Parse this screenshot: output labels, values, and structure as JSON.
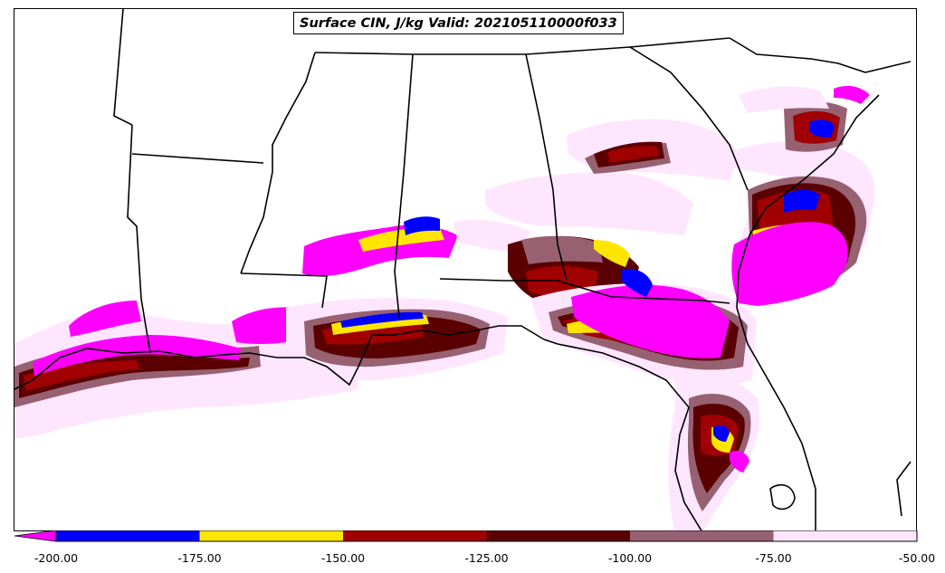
{
  "title": "Surface CIN, J/kg Valid: 202105110000f033",
  "colorbar": {
    "ticks": [
      "-200.00",
      "-175.00",
      "-150.00",
      "-125.00",
      "-100.00",
      "-75.00",
      "-50.00"
    ],
    "bins": [
      {
        "from": -200,
        "to": -175,
        "color": "#0000ff"
      },
      {
        "from": -175,
        "to": -150,
        "color": "#ffe600"
      },
      {
        "from": -150,
        "to": -125,
        "color": "#a00000"
      },
      {
        "from": -125,
        "to": -100,
        "color": "#5a0000"
      },
      {
        "from": -100,
        "to": -75,
        "color": "#976172"
      },
      {
        "from": -75,
        "to": -50,
        "color": "#ffe6ff"
      }
    ],
    "extend_below_color": "#ff00ff"
  },
  "colors": {
    "below_min": "#ff00ff",
    "bin_200_175": "#0000ff",
    "bin_175_150": "#ffe600",
    "bin_150_125": "#a00000",
    "bin_125_100": "#5a0000",
    "bin_100_75": "#976172",
    "bin_75_50": "#ffe6ff",
    "boundaries": "#000000"
  }
}
